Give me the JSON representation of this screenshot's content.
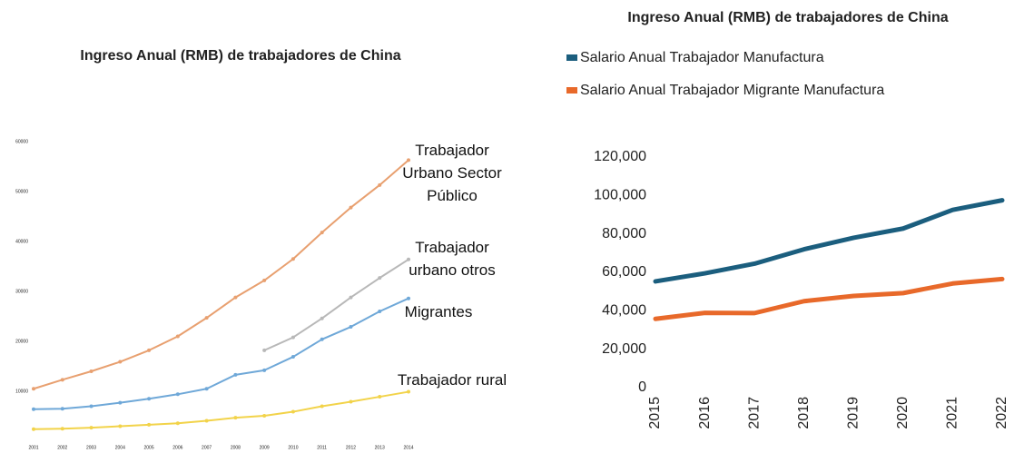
{
  "chart_data": [
    {
      "type": "line",
      "title": "Ingreso Anual (RMB) de trabajadores de China",
      "categories": [
        "2001",
        "2002",
        "2003",
        "2004",
        "2005",
        "2006",
        "2007",
        "2008",
        "2009",
        "2010",
        "2011",
        "2012",
        "2013",
        "2014"
      ],
      "ylim": [
        0,
        60000
      ],
      "yticks": [
        10000,
        20000,
        30000,
        40000,
        50000,
        60000
      ],
      "series": [
        {
          "name": "Trabajador Urbano Sector Público",
          "color": "#e8a070",
          "values": [
            10500,
            12300,
            14000,
            15900,
            18200,
            21000,
            24700,
            28800,
            32200,
            36500,
            41800,
            46800,
            51300,
            56300
          ]
        },
        {
          "name": "Trabajador urbano otros",
          "color": "#b8b8b8",
          "values": [
            null,
            null,
            null,
            null,
            null,
            null,
            null,
            null,
            18200,
            20800,
            24600,
            28800,
            32700,
            36400
          ]
        },
        {
          "name": "Migrantes",
          "color": "#6fa8d8",
          "values": [
            6400,
            6500,
            7000,
            7700,
            8500,
            9400,
            10500,
            13300,
            14200,
            16900,
            20400,
            22900,
            26000,
            28600
          ]
        },
        {
          "name": "Trabajador rural",
          "color": "#f2d34a",
          "values": [
            2400,
            2500,
            2700,
            3000,
            3300,
            3600,
            4100,
            4700,
            5100,
            5900,
            7000,
            7900,
            8900,
            9900
          ]
        }
      ]
    },
    {
      "type": "line",
      "title": "Ingreso Anual (RMB) de trabajadores de China",
      "categories": [
        "2015",
        "2016",
        "2017",
        "2018",
        "2019",
        "2020",
        "2021",
        "2022"
      ],
      "ylim": [
        0,
        120000
      ],
      "yticks": [
        0,
        {
          "value": 20000,
          "label": "20,000"
        },
        {
          "value": 40000,
          "label": "40,000"
        },
        {
          "value": 60000,
          "label": "60,000"
        },
        {
          "value": 80000,
          "label": "80,000"
        },
        {
          "value": 100000,
          "label": "100,000"
        },
        {
          "value": 120000,
          "label": "120,000"
        }
      ],
      "legend": "top-left",
      "series": [
        {
          "name": "Salario Anual Trabajador Manufactura",
          "color": "#1b5e7e",
          "values": [
            55300,
            59500,
            64500,
            72000,
            78000,
            82800,
            92500,
            97500
          ]
        },
        {
          "name": "Salario Anual Trabajador Migrante Manufactura",
          "color": "#e8692a",
          "values": [
            35800,
            38900,
            38800,
            45000,
            47700,
            49200,
            54200,
            56500
          ]
        }
      ]
    }
  ]
}
